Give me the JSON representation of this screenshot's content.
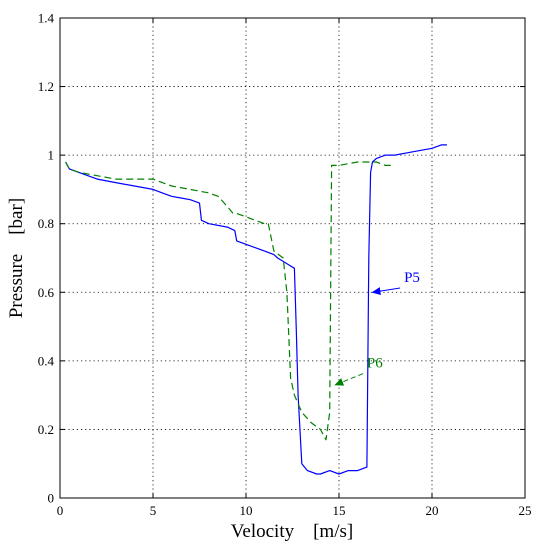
{
  "chart_data": {
    "type": "line",
    "title": "",
    "xlabel": "Velocity    [m/s]",
    "ylabel": "Pressure    [bar]",
    "xlim": [
      0,
      25
    ],
    "ylim": [
      0,
      1.4
    ],
    "xticks": [
      0,
      5,
      10,
      15,
      20,
      25
    ],
    "yticks": [
      0,
      0.2,
      0.4,
      0.6,
      0.8,
      1,
      1.2,
      1.4
    ],
    "xtick_labels": [
      "0",
      "5",
      "10",
      "15",
      "20",
      "25"
    ],
    "ytick_labels": [
      "0",
      "0.2",
      "0.4",
      "0.6",
      "0.8",
      "1",
      "1.2",
      "1.4"
    ],
    "grid": true,
    "series": [
      {
        "name": "P5",
        "color": "#0000ff",
        "style": "solid",
        "x": [
          0.3,
          0.5,
          1.0,
          2.0,
          3.0,
          4.0,
          5.0,
          5.5,
          6.0,
          6.5,
          7.0,
          7.5,
          7.6,
          8.0,
          9.0,
          9.4,
          9.5,
          10.0,
          10.5,
          11.0,
          11.5,
          11.7,
          12.0,
          12.3,
          12.6,
          12.7,
          12.8,
          13.0,
          13.3,
          13.8,
          14.0,
          14.5,
          15.0,
          15.5,
          16.0,
          16.5,
          16.6,
          16.7,
          16.8,
          17.0,
          17.5,
          18.0,
          19.0,
          20.0,
          20.5,
          20.8
        ],
        "y": [
          0.98,
          0.96,
          0.95,
          0.93,
          0.92,
          0.91,
          0.9,
          0.89,
          0.88,
          0.875,
          0.87,
          0.86,
          0.81,
          0.8,
          0.79,
          0.78,
          0.75,
          0.74,
          0.73,
          0.72,
          0.71,
          0.7,
          0.69,
          0.68,
          0.67,
          0.5,
          0.3,
          0.1,
          0.08,
          0.07,
          0.07,
          0.08,
          0.07,
          0.08,
          0.08,
          0.09,
          0.7,
          0.95,
          0.98,
          0.99,
          1.0,
          1.0,
          1.01,
          1.02,
          1.03,
          1.03
        ]
      },
      {
        "name": "P6",
        "color": "#008000",
        "style": "dashed",
        "x": [
          0.3,
          0.5,
          1.0,
          2.0,
          3.0,
          4.0,
          5.0,
          5.5,
          6.0,
          7.0,
          8.0,
          8.5,
          9.0,
          9.3,
          9.5,
          10.0,
          10.5,
          11.0,
          11.2,
          11.5,
          12.0,
          12.2,
          12.4,
          12.6,
          13.0,
          13.5,
          14.0,
          14.3,
          14.5,
          14.6,
          14.7,
          15.0,
          16.0,
          17.0,
          17.5,
          18.0
        ],
        "y": [
          0.98,
          0.96,
          0.95,
          0.94,
          0.93,
          0.93,
          0.93,
          0.92,
          0.91,
          0.9,
          0.89,
          0.88,
          0.85,
          0.83,
          0.83,
          0.82,
          0.81,
          0.8,
          0.8,
          0.72,
          0.7,
          0.6,
          0.35,
          0.3,
          0.25,
          0.22,
          0.2,
          0.17,
          0.25,
          0.97,
          0.97,
          0.97,
          0.98,
          0.98,
          0.97,
          0.97
        ]
      }
    ],
    "annotations": [
      {
        "text": "P5",
        "color": "#0000ff",
        "text_at": [
          18.5,
          0.63
        ],
        "arrow_to": [
          16.8,
          0.6
        ]
      },
      {
        "text": "P6",
        "color": "#008000",
        "text_at": [
          16.5,
          0.38
        ],
        "arrow_to": [
          14.8,
          0.33
        ]
      }
    ]
  }
}
